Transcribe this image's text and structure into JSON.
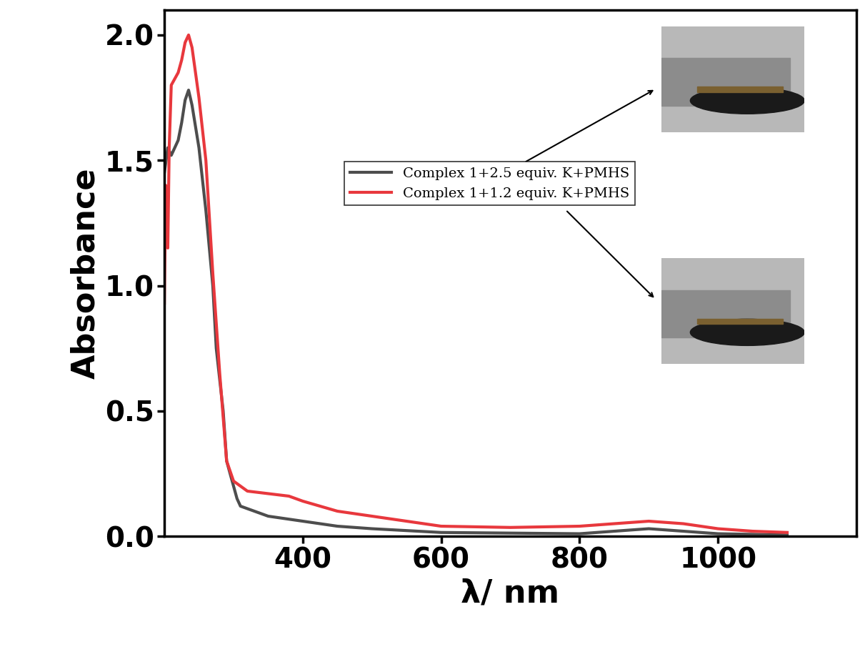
{
  "chart_data": {
    "type": "line",
    "x_label": "λ/ nm",
    "y_label": "Absorbance",
    "xlim": [
      200,
      1200
    ],
    "xticks": [
      400,
      600,
      800,
      1000
    ],
    "ylim": [
      0,
      2.1
    ],
    "yticks": [
      0.0,
      0.5,
      1.0,
      1.5,
      2.0
    ],
    "legend": "center",
    "series": [
      {
        "name": "Complex 1+2.5 equiv. K+PMHS",
        "color": "#4d4d4d",
        "x": [
          200,
          205,
          210,
          215,
          220,
          225,
          230,
          235,
          240,
          250,
          260,
          270,
          275,
          285,
          290,
          305,
          310,
          350,
          400,
          450,
          500,
          600,
          800,
          850,
          900,
          950,
          1000,
          1100
        ],
        "values": [
          1.45,
          1.55,
          1.52,
          1.55,
          1.58,
          1.65,
          1.74,
          1.78,
          1.72,
          1.55,
          1.3,
          1.0,
          0.75,
          0.5,
          0.3,
          0.15,
          0.12,
          0.08,
          0.06,
          0.04,
          0.03,
          0.015,
          0.01,
          0.02,
          0.03,
          0.02,
          0.01,
          0.005
        ]
      },
      {
        "name": "Complex 1+1.2 equiv. K+PMHS",
        "color": "#e8383d",
        "x": [
          200,
          202,
          205,
          207,
          210,
          220,
          225,
          230,
          235,
          240,
          250,
          260,
          270,
          280,
          290,
          300,
          320,
          350,
          380,
          400,
          450,
          500,
          550,
          600,
          700,
          800,
          850,
          900,
          950,
          1000,
          1050,
          1100
        ],
        "values": [
          0.93,
          1.4,
          1.15,
          1.55,
          1.8,
          1.85,
          1.9,
          1.97,
          2.0,
          1.95,
          1.75,
          1.5,
          1.05,
          0.65,
          0.3,
          0.22,
          0.18,
          0.17,
          0.16,
          0.14,
          0.1,
          0.08,
          0.06,
          0.04,
          0.035,
          0.04,
          0.05,
          0.06,
          0.05,
          0.03,
          0.02,
          0.015
        ]
      }
    ]
  }
}
